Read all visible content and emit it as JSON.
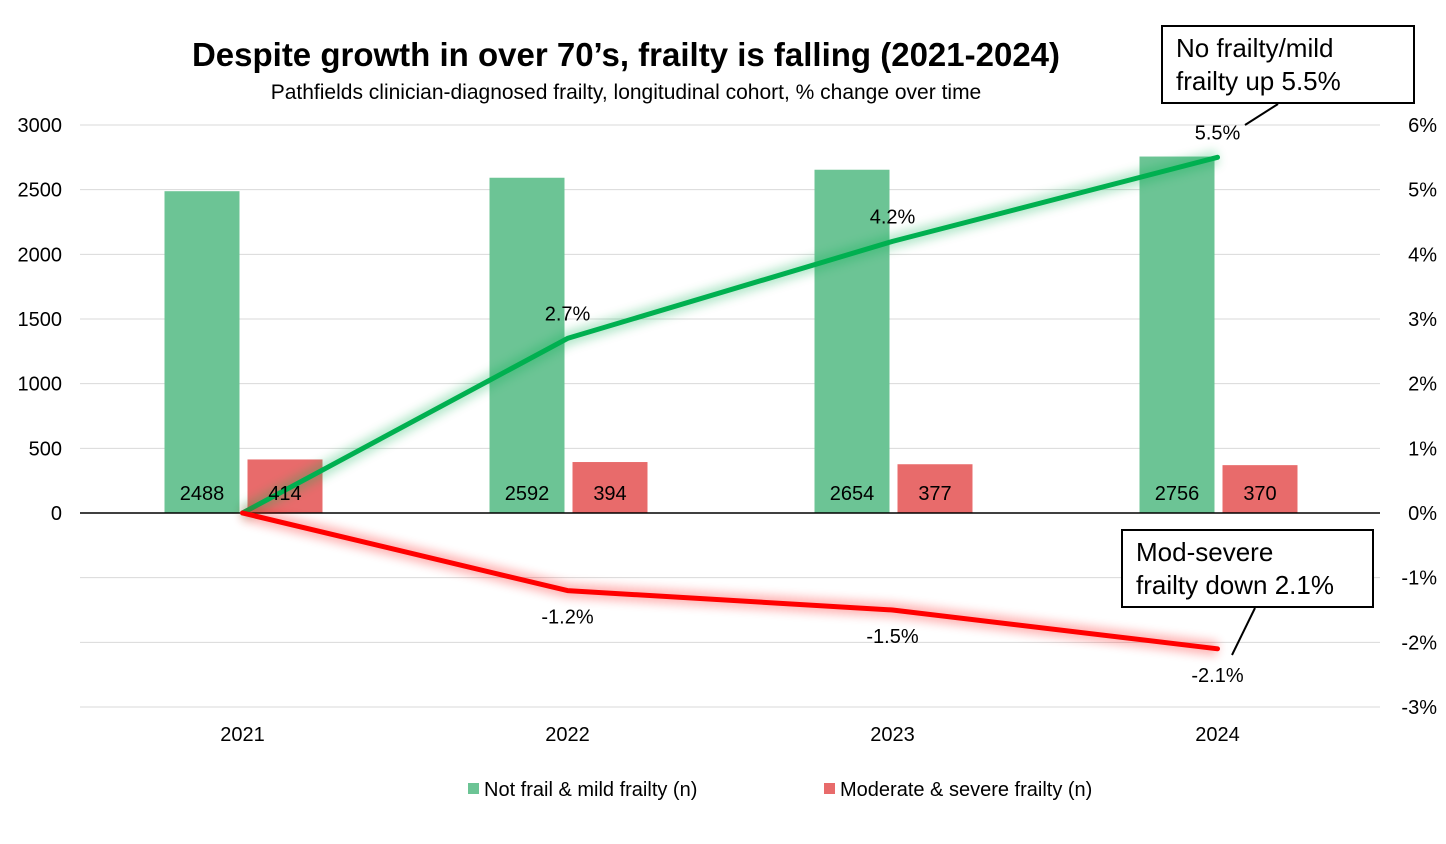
{
  "chart_data": {
    "type": "bar+line",
    "title": "Despite growth in over 70’s, frailty is falling (2021-2024)",
    "subtitle": "Pathfields clinician-diagnosed frailty, longitudinal cohort, % change over time",
    "categories": [
      "2021",
      "2022",
      "2023",
      "2024"
    ],
    "y_left": {
      "range": [
        -1500,
        3000
      ],
      "ticks": [
        0,
        500,
        1000,
        1500,
        2000,
        2500,
        3000
      ],
      "tick_labels": [
        "0",
        "500",
        "1000",
        "1500",
        "2000",
        "2500",
        "3000"
      ]
    },
    "y_right": {
      "range": [
        -3,
        6
      ],
      "ticks": [
        -3,
        -2,
        -1,
        0,
        1,
        2,
        3,
        4,
        5,
        6
      ],
      "tick_labels": [
        "-3%",
        "-2%",
        "-1%",
        "0%",
        "1%",
        "2%",
        "3%",
        "4%",
        "5%",
        "6%"
      ]
    },
    "grid": true,
    "legend_position": "bottom",
    "bar_series": [
      {
        "name": "Not frail & mild frailty (n)",
        "color": "#6cc495",
        "values": [
          2488,
          2592,
          2654,
          2756
        ],
        "labels": [
          "2488",
          "2592",
          "2654",
          "2756"
        ]
      },
      {
        "name": "Moderate & severe frailty (n)",
        "color": "#e86b6b",
        "values": [
          414,
          394,
          377,
          370
        ],
        "labels": [
          "414",
          "394",
          "377",
          "370"
        ]
      }
    ],
    "line_series": [
      {
        "color": "#00b050",
        "values": [
          0,
          2.7,
          4.2,
          5.5
        ],
        "labels": [
          "",
          "2.7%",
          "4.2%",
          "5.5%"
        ]
      },
      {
        "color": "#ff0000",
        "values": [
          0,
          -1.2,
          -1.5,
          -2.1
        ],
        "labels": [
          "",
          "-1.2%",
          "-1.5%",
          "-2.1%"
        ]
      }
    ],
    "annotations": [
      {
        "lines": [
          "No frailty/mild",
          "frailty up 5.5%"
        ]
      },
      {
        "lines": [
          "Mod-severe",
          "frailty down 2.1%"
        ]
      }
    ]
  }
}
